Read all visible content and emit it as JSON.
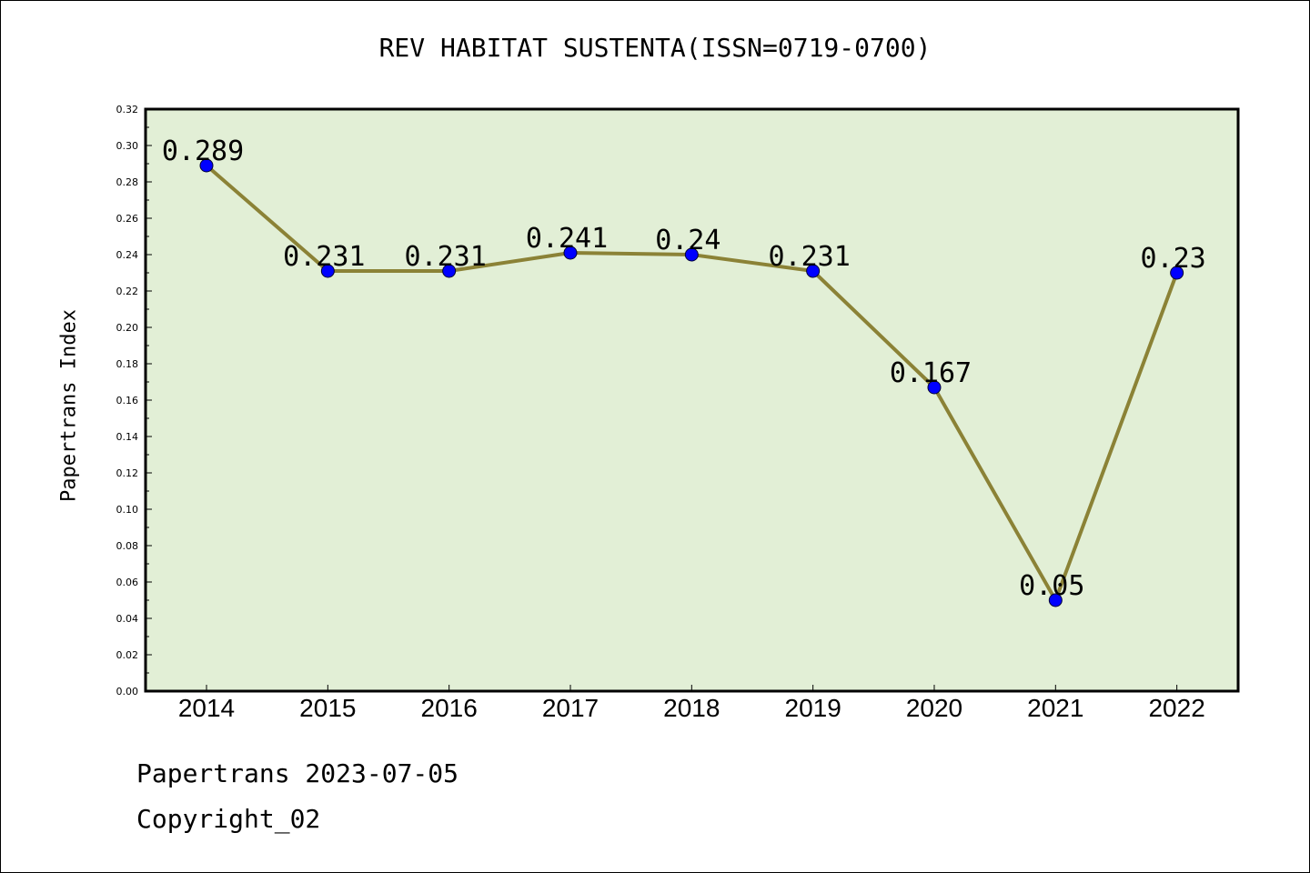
{
  "chart_data": {
    "type": "line",
    "title": "REV HABITAT SUSTENTA(ISSN=0719-0700)",
    "xlabel": "",
    "ylabel": "Papertrans Index",
    "categories": [
      "2014",
      "2015",
      "2016",
      "2017",
      "2018",
      "2019",
      "2020",
      "2021",
      "2022"
    ],
    "values": [
      0.289,
      0.231,
      0.231,
      0.241,
      0.24,
      0.231,
      0.167,
      0.05,
      0.23
    ],
    "data_labels": [
      "0.289",
      "0.231",
      "0.231",
      "0.241",
      "0.24",
      "0.231",
      "0.167",
      "0.05",
      "0.23"
    ],
    "ylim": [
      0,
      0.32
    ],
    "yticks": [
      "0.00",
      "0.02",
      "0.04",
      "0.06",
      "0.08",
      "0.10",
      "0.12",
      "0.14",
      "0.16",
      "0.18",
      "0.20",
      "0.22",
      "0.24",
      "0.26",
      "0.28",
      "0.30",
      "0.32"
    ],
    "grid": false,
    "colors": {
      "plot_bg": "#e2efd6",
      "line": "#8b8236",
      "marker": "#0000ff"
    }
  },
  "footer": {
    "date": "Papertrans 2023-07-05",
    "copyright": "Copyright_02"
  }
}
